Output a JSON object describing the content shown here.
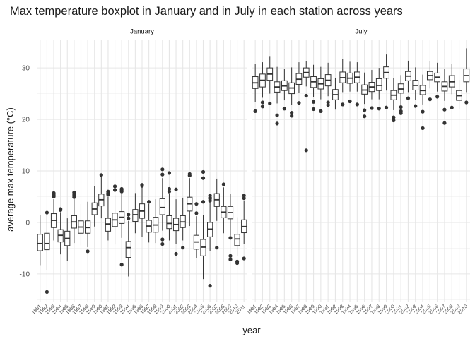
{
  "chart_data": {
    "type": "boxplot",
    "title": "Max temperature boxplot in January and in July in each station across years",
    "xlabel": "year",
    "ylabel": "average max temperature (°C)",
    "ylim": [
      -15.5,
      35.5
    ],
    "yticks": [
      -10,
      0,
      10,
      20,
      30
    ],
    "ytick_labels": [
      "-10",
      "0",
      "10",
      "20",
      "30"
    ],
    "grid": true,
    "facets": [
      {
        "label": "January",
        "boxes": [
          {
            "year": "1981",
            "lw": -8.3,
            "q1": -5.5,
            "med": -4.1,
            "q3": -2.3,
            "uw": 1.4,
            "out": []
          },
          {
            "year": "1982",
            "lw": -9.2,
            "q1": -5.3,
            "med": -4.1,
            "q3": -2.1,
            "uw": 2.1,
            "out": [
              -13.5,
              1.9
            ]
          },
          {
            "year": "1983",
            "lw": -3.5,
            "q1": -1.0,
            "med": 0.4,
            "q3": 1.7,
            "uw": 4.5,
            "out": [
              5.0,
              5.3,
              5.5,
              5.7
            ]
          },
          {
            "year": "1984",
            "lw": -6.2,
            "q1": -3.8,
            "med": -2.5,
            "q3": -1.4,
            "uw": 2.0,
            "out": [
              2.4,
              2.6
            ]
          },
          {
            "year": "1985",
            "lw": -7.5,
            "q1": -4.5,
            "med": -3.1,
            "q3": -1.7,
            "uw": 0.8,
            "out": []
          },
          {
            "year": "1986",
            "lw": -4.0,
            "q1": -1.1,
            "med": 0.1,
            "q3": 1.3,
            "uw": 4.5,
            "out": [
              4.9,
              5.2,
              5.5,
              5.8
            ]
          },
          {
            "year": "1987",
            "lw": -4.5,
            "q1": -2.1,
            "med": -0.9,
            "q3": 0.3,
            "uw": 3.6,
            "out": []
          },
          {
            "year": "1988",
            "lw": -4.8,
            "q1": -2.1,
            "med": -1.0,
            "q3": 0.3,
            "uw": 4.0,
            "out": [
              -5.6
            ]
          },
          {
            "year": "1989",
            "lw": -0.8,
            "q1": 1.5,
            "med": 2.6,
            "q3": 3.8,
            "uw": 7.1,
            "out": []
          },
          {
            "year": "1990",
            "lw": 0.8,
            "q1": 3.2,
            "med": 4.4,
            "q3": 5.5,
            "uw": 8.8,
            "out": [
              9.2
            ]
          },
          {
            "year": "1991",
            "lw": -3.5,
            "q1": -1.7,
            "med": -0.3,
            "q3": 0.8,
            "uw": 5.0,
            "out": [
              5.4,
              5.7,
              6.0
            ]
          },
          {
            "year": "1992",
            "lw": -4.3,
            "q1": -0.8,
            "med": 0.5,
            "q3": 1.8,
            "uw": 5.3,
            "out": [
              6.3,
              7.0
            ]
          },
          {
            "year": "1993",
            "lw": -3.0,
            "q1": -0.2,
            "med": 1.0,
            "q3": 2.1,
            "uw": 5.6,
            "out": [
              -8.2,
              6.0,
              6.3,
              6.5
            ]
          },
          {
            "year": "1994",
            "lw": -10.5,
            "q1": -6.8,
            "med": -4.9,
            "q3": -3.7,
            "uw": 0.3,
            "out": [
              0.8,
              1.5
            ]
          },
          {
            "year": "1995",
            "lw": -2.1,
            "q1": 0.2,
            "med": 1.5,
            "q3": 2.5,
            "uw": 5.7,
            "out": []
          },
          {
            "year": "1996",
            "lw": -2.8,
            "q1": 0.8,
            "med": 2.2,
            "q3": 3.6,
            "uw": 6.8,
            "out": [
              7.1,
              7.3
            ]
          },
          {
            "year": "1997",
            "lw": -3.9,
            "q1": -1.9,
            "med": -0.7,
            "q3": 0.4,
            "uw": 3.6,
            "out": [
              4.0
            ]
          },
          {
            "year": "1998",
            "lw": -4.0,
            "q1": -1.9,
            "med": -0.5,
            "q3": 1.0,
            "uw": 4.5,
            "out": []
          },
          {
            "year": "1999",
            "lw": -1.6,
            "q1": 1.5,
            "med": 2.9,
            "q3": 4.6,
            "uw": 8.6,
            "out": [
              -3.3,
              -4.2,
              9.3,
              10.3
            ]
          },
          {
            "year": "2000",
            "lw": -3.5,
            "q1": -1.2,
            "med": -0.2,
            "q3": 1.3,
            "uw": 5.5,
            "out": [
              6.0,
              6.5,
              9.6
            ]
          },
          {
            "year": "2001",
            "lw": -4.2,
            "q1": -1.6,
            "med": -0.4,
            "q3": 0.8,
            "uw": 4.5,
            "out": [
              -6.1,
              6.4
            ]
          },
          {
            "year": "2002",
            "lw": -3.5,
            "q1": -1.0,
            "med": 0.1,
            "q3": 1.3,
            "uw": 4.8,
            "out": [
              -4.9
            ]
          },
          {
            "year": "2003",
            "lw": -0.7,
            "q1": 2.2,
            "med": 3.6,
            "q3": 4.9,
            "uw": 8.6,
            "out": [
              9.1,
              9.4
            ]
          },
          {
            "year": "2004",
            "lw": -7.0,
            "q1": -5.2,
            "med": -3.8,
            "q3": -2.5,
            "uw": 1.2,
            "out": [
              1.8,
              3.6
            ]
          },
          {
            "year": "2005",
            "lw": -11.0,
            "q1": -6.5,
            "med": -4.8,
            "q3": -3.3,
            "uw": 1.5,
            "out": [
              4.0,
              8.6,
              9.8
            ]
          },
          {
            "year": "2006",
            "lw": -5.6,
            "q1": -2.8,
            "med": -1.3,
            "q3": 0.0,
            "uw": 3.8,
            "out": [
              -12.3,
              4.2,
              4.6,
              4.8,
              5.2
            ]
          },
          {
            "year": "2007",
            "lw": 0.3,
            "q1": 3.1,
            "med": 4.4,
            "q3": 5.6,
            "uw": 8.5,
            "out": [
              -4.9
            ]
          },
          {
            "year": "2008",
            "lw": -2.1,
            "q1": 0.9,
            "med": 2.0,
            "q3": 3.1,
            "uw": 6.8,
            "out": [
              7.4
            ]
          },
          {
            "year": "2009",
            "lw": -2.6,
            "q1": 0.7,
            "med": 1.9,
            "q3": 3.1,
            "uw": 5.5,
            "out": [
              -6.5,
              -7.2,
              -3.0
            ]
          },
          {
            "year": "2010",
            "lw": -6.5,
            "q1": -4.5,
            "med": -3.2,
            "q3": -2.3,
            "uw": 1.0,
            "out": [
              -7.6,
              -7.9
            ]
          },
          {
            "year": "2011",
            "lw": -4.2,
            "q1": -2.0,
            "med": -0.8,
            "q3": 0.5,
            "uw": 4.2,
            "out": [
              -7.0,
              4.7,
              5.2
            ]
          }
        ]
      },
      {
        "label": "July",
        "boxes": [
          {
            "year": "1981",
            "lw": 23.3,
            "q1": 26.0,
            "med": 27.1,
            "q3": 28.3,
            "uw": 30.7,
            "out": [
              21.6
            ]
          },
          {
            "year": "1982",
            "lw": 24.2,
            "q1": 26.3,
            "med": 27.6,
            "q3": 28.8,
            "uw": 31.1,
            "out": [
              23.3,
              22.5
            ]
          },
          {
            "year": "1983",
            "lw": 25.0,
            "q1": 27.6,
            "med": 28.8,
            "q3": 30.0,
            "uw": 32.3,
            "out": [
              23.1
            ]
          },
          {
            "year": "1984",
            "lw": 23.1,
            "q1": 25.3,
            "med": 26.3,
            "q3": 27.3,
            "uw": 30.2,
            "out": [
              20.8,
              19.2
            ]
          },
          {
            "year": "1985",
            "lw": 23.7,
            "q1": 25.6,
            "med": 26.5,
            "q3": 27.5,
            "uw": 29.8,
            "out": [
              22.1
            ]
          },
          {
            "year": "1986",
            "lw": 22.8,
            "q1": 25.0,
            "med": 26.1,
            "q3": 27.1,
            "uw": 30.1,
            "out": [
              21.3,
              20.7
            ]
          },
          {
            "year": "1987",
            "lw": 25.1,
            "q1": 26.8,
            "med": 27.8,
            "q3": 28.9,
            "uw": 31.1,
            "out": [
              23.2
            ]
          },
          {
            "year": "1988",
            "lw": 26.4,
            "q1": 28.2,
            "med": 29.1,
            "q3": 30.0,
            "uw": 31.3,
            "out": [
              24.6,
              14.0
            ]
          },
          {
            "year": "1989",
            "lw": 24.3,
            "q1": 26.2,
            "med": 27.3,
            "q3": 28.3,
            "uw": 30.6,
            "out": [
              23.4,
              22.0
            ]
          },
          {
            "year": "1990",
            "lw": 23.9,
            "q1": 25.9,
            "med": 26.9,
            "q3": 27.9,
            "uw": 30.2,
            "out": [
              21.6
            ]
          },
          {
            "year": "1991",
            "lw": 24.5,
            "q1": 26.5,
            "med": 27.6,
            "q3": 28.7,
            "uw": 31.0,
            "out": [
              23.3,
              22.8
            ]
          },
          {
            "year": "1992",
            "lw": 21.9,
            "q1": 23.8,
            "med": 24.8,
            "q3": 25.8,
            "uw": 28.1,
            "out": []
          },
          {
            "year": "1993",
            "lw": 25.3,
            "q1": 27.1,
            "med": 28.1,
            "q3": 29.2,
            "uw": 31.7,
            "out": [
              22.9
            ]
          },
          {
            "year": "1994",
            "lw": 25.4,
            "q1": 27.0,
            "med": 28.0,
            "q3": 29.0,
            "uw": 31.2,
            "out": [
              23.5
            ]
          },
          {
            "year": "1995",
            "lw": 25.4,
            "q1": 27.1,
            "med": 28.2,
            "q3": 29.2,
            "uw": 31.1,
            "out": [
              22.9
            ]
          },
          {
            "year": "1996",
            "lw": 23.0,
            "q1": 24.9,
            "med": 25.7,
            "q3": 26.7,
            "uw": 29.1,
            "out": [
              21.8,
              20.6
            ]
          },
          {
            "year": "1997",
            "lw": 23.9,
            "q1": 25.4,
            "med": 26.3,
            "q3": 27.2,
            "uw": 29.6,
            "out": [
              22.2
            ]
          },
          {
            "year": "1998",
            "lw": 23.9,
            "q1": 25.6,
            "med": 26.6,
            "q3": 27.9,
            "uw": 30.0,
            "out": [
              22.1
            ]
          },
          {
            "year": "1999",
            "lw": 25.6,
            "q1": 28.0,
            "med": 29.1,
            "q3": 30.2,
            "uw": 32.6,
            "out": [
              22.3
            ]
          },
          {
            "year": "2000",
            "lw": 21.8,
            "q1": 23.8,
            "med": 24.7,
            "q3": 25.6,
            "uw": 28.0,
            "out": [
              20.4,
              19.8
            ]
          },
          {
            "year": "2001",
            "lw": 22.6,
            "q1": 25.1,
            "med": 25.9,
            "q3": 26.9,
            "uw": 28.6,
            "out": [
              21.6,
              21.2,
              22.4
            ]
          },
          {
            "year": "2002",
            "lw": 25.3,
            "q1": 27.5,
            "med": 28.4,
            "q3": 29.3,
            "uw": 31.4,
            "out": [
              24.1
            ]
          },
          {
            "year": "2003",
            "lw": 23.8,
            "q1": 25.7,
            "med": 26.6,
            "q3": 27.6,
            "uw": 30.1,
            "out": [
              22.6
            ]
          },
          {
            "year": "2004",
            "lw": 22.9,
            "q1": 24.8,
            "med": 25.6,
            "q3": 26.6,
            "uw": 28.7,
            "out": [
              21.5,
              18.3
            ]
          },
          {
            "year": "2005",
            "lw": 26.0,
            "q1": 27.7,
            "med": 28.5,
            "q3": 29.3,
            "uw": 31.3,
            "out": [
              23.9
            ]
          },
          {
            "year": "2006",
            "lw": 25.4,
            "q1": 27.3,
            "med": 28.2,
            "q3": 29.0,
            "uw": 31.0,
            "out": [
              24.4
            ]
          },
          {
            "year": "2007",
            "lw": 23.6,
            "q1": 25.5,
            "med": 26.4,
            "q3": 27.3,
            "uw": 29.8,
            "out": [
              21.9,
              19.3
            ]
          },
          {
            "year": "2008",
            "lw": 24.9,
            "q1": 26.3,
            "med": 27.3,
            "q3": 28.5,
            "uw": 30.8,
            "out": [
              22.3
            ]
          },
          {
            "year": "2009",
            "lw": 22.0,
            "q1": 23.7,
            "med": 24.6,
            "q3": 25.6,
            "uw": 27.7,
            "out": []
          },
          {
            "year": "2010",
            "lw": 25.3,
            "q1": 27.3,
            "med": 28.5,
            "q3": 29.8,
            "uw": 33.8,
            "out": [
              23.3
            ]
          }
        ]
      }
    ]
  }
}
